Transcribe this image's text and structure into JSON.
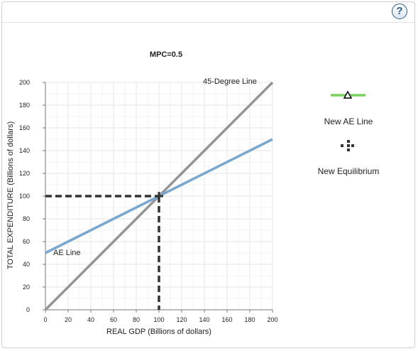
{
  "help": {
    "label": "?"
  },
  "chart_data": {
    "type": "line",
    "title": "MPC=0.5",
    "xlabel": "REAL GDP (Billions of dollars)",
    "ylabel": "TOTAL EXPENDITURE (Billions of dollars)",
    "xlim": [
      0,
      200
    ],
    "ylim": [
      0,
      200
    ],
    "x_ticks": [
      0,
      20,
      40,
      60,
      80,
      100,
      120,
      140,
      160,
      180,
      200
    ],
    "y_ticks": [
      0,
      20,
      40,
      60,
      80,
      100,
      120,
      140,
      160,
      180,
      200
    ],
    "grid": true,
    "series": [
      {
        "name": "45-Degree Line",
        "color": "#959595",
        "x": [
          0,
          200
        ],
        "y": [
          0,
          200
        ]
      },
      {
        "name": "AE Line",
        "color": "#7aa7cf",
        "x": [
          0,
          200
        ],
        "y": [
          50,
          150
        ]
      }
    ],
    "equilibrium": {
      "x": 100,
      "y": 100,
      "color": "#333333"
    },
    "annotations": [
      {
        "text": "45-Degree Line",
        "x": 145,
        "y": 200
      },
      {
        "text": "AE Line",
        "x": 8,
        "y": 48
      }
    ]
  },
  "legend": {
    "items": [
      {
        "label": "New AE Line",
        "icon": "triangle-line-icon",
        "color": "#79d15f"
      },
      {
        "label": "New Equilibrium",
        "icon": "plus-crosshair-icon",
        "color": "#333333"
      }
    ]
  }
}
